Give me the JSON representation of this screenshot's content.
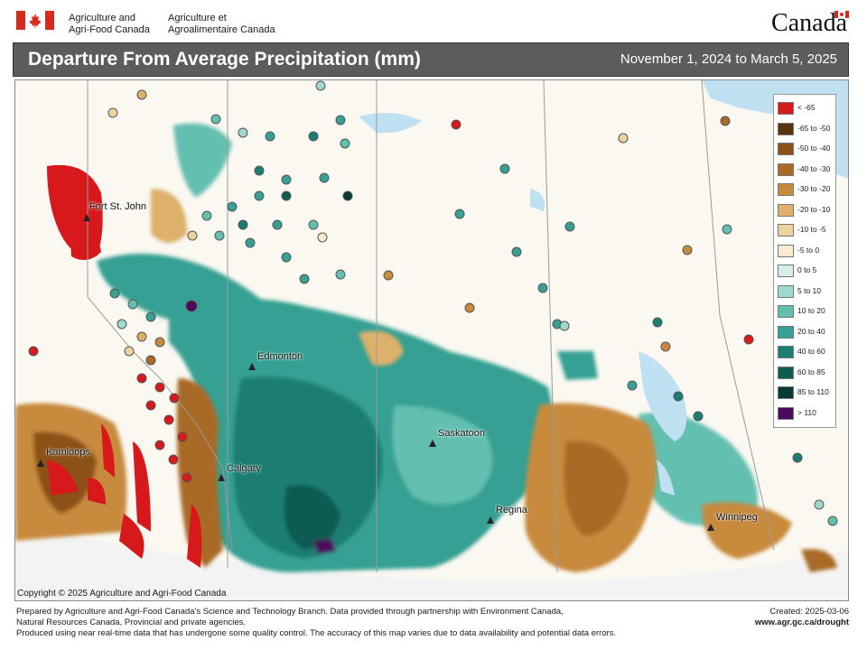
{
  "header": {
    "agency_en_line1": "Agriculture and",
    "agency_en_line2": "Agri-Food Canada",
    "agency_fr_line1": "Agriculture et",
    "agency_fr_line2": "Agroalimentaire Canada",
    "wordmark": "Canada",
    "flag_color": "#d52b1e"
  },
  "map": {
    "title": "Departure From Average Precipitation (mm)",
    "date_range": "November 1, 2024 to March 5, 2025",
    "cities": [
      {
        "name": "Fort St. John"
      },
      {
        "name": "Edmonton"
      },
      {
        "name": "Kamloops"
      },
      {
        "name": "Calgary"
      },
      {
        "name": "Saskatoon"
      },
      {
        "name": "Regina"
      },
      {
        "name": "Winnipeg"
      }
    ],
    "legend": [
      {
        "label": "< -65",
        "color": "#d7191c"
      },
      {
        "label": "-65 to -50",
        "color": "#5a3310"
      },
      {
        "label": "-50 to -40",
        "color": "#8c5118"
      },
      {
        "label": "-40 to -30",
        "color": "#a86a25"
      },
      {
        "label": "-30 to -20",
        "color": "#c88a3c"
      },
      {
        "label": "-20 to -10",
        "color": "#ddb16b"
      },
      {
        "label": "-10 to -5",
        "color": "#ecd39d"
      },
      {
        "label": "-5 to 0",
        "color": "#f7ead0"
      },
      {
        "label": "0 to 5",
        "color": "#d7eeeb"
      },
      {
        "label": "5 to 10",
        "color": "#9fd8cf"
      },
      {
        "label": "10 to 20",
        "color": "#63bfb0"
      },
      {
        "label": "20 to 40",
        "color": "#35a093"
      },
      {
        "label": "40 to 60",
        "color": "#1a7e73"
      },
      {
        "label": "60 to 85",
        "color": "#0c5c52"
      },
      {
        "label": "85 to 110",
        "color": "#083a33"
      },
      {
        "label": "> 110",
        "color": "#4b0a5c"
      }
    ],
    "copyright": "Copyright © 2025 Agriculture and Agri-Food Canada"
  },
  "footer": {
    "line1": "Prepared by Agriculture and Agri-Food Canada's Science and Technology Branch. Data provided through partnership with Environment Canada,",
    "line2": "Natural Resources Canada, Provincial and private agencies.",
    "line3": "Produced using near real-time data that has undergone some quality control. The accuracy of this map varies due to data availability and potential data errors.",
    "created": "Created: 2025-03-06",
    "url": "www.agr.gc.ca/drought"
  }
}
